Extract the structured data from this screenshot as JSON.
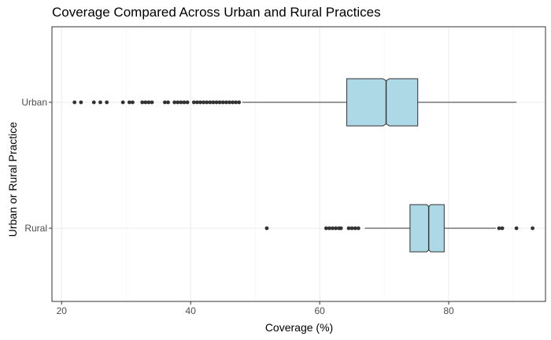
{
  "chart_data": {
    "type": "boxplot",
    "orientation": "horizontal",
    "notched": true,
    "title": "Coverage Compared Across Urban and Rural Practices",
    "xlabel": "Coverage (%)",
    "ylabel": "Urban or Rural Practice",
    "xlim": [
      18.5,
      95
    ],
    "xticks": [
      20,
      40,
      60,
      80
    ],
    "categories": [
      "Urban",
      "Rural"
    ],
    "grid": true,
    "box_fill": "#add8e6",
    "outlier_color": "#333333",
    "series": [
      {
        "category": "Urban",
        "whisker_low": 48,
        "q1": 64.2,
        "median": 70.3,
        "q3": 75.2,
        "whisker_high": 90.5,
        "notch_low": 69.8,
        "notch_high": 70.8,
        "outliers": [
          22,
          23,
          25,
          26,
          27,
          29.5,
          30.5,
          31,
          32.5,
          33,
          33.5,
          34,
          36,
          36.5,
          37.5,
          38,
          38.5,
          39,
          39.5,
          40.5,
          41,
          41.5,
          42,
          42.5,
          43,
          43.5,
          44,
          44.5,
          45,
          45.5,
          46,
          46.5,
          47,
          47.5
        ]
      },
      {
        "category": "Rural",
        "whisker_low": 67,
        "q1": 74,
        "median": 76.9,
        "q3": 79.3,
        "whisker_high": 87.3,
        "notch_low": 76.6,
        "notch_high": 77.2,
        "outliers": [
          51.8,
          61,
          61.5,
          62,
          62.5,
          63,
          63.3,
          64.5,
          65,
          65.5,
          66,
          87.8,
          88.3,
          90.5,
          93
        ]
      }
    ]
  }
}
